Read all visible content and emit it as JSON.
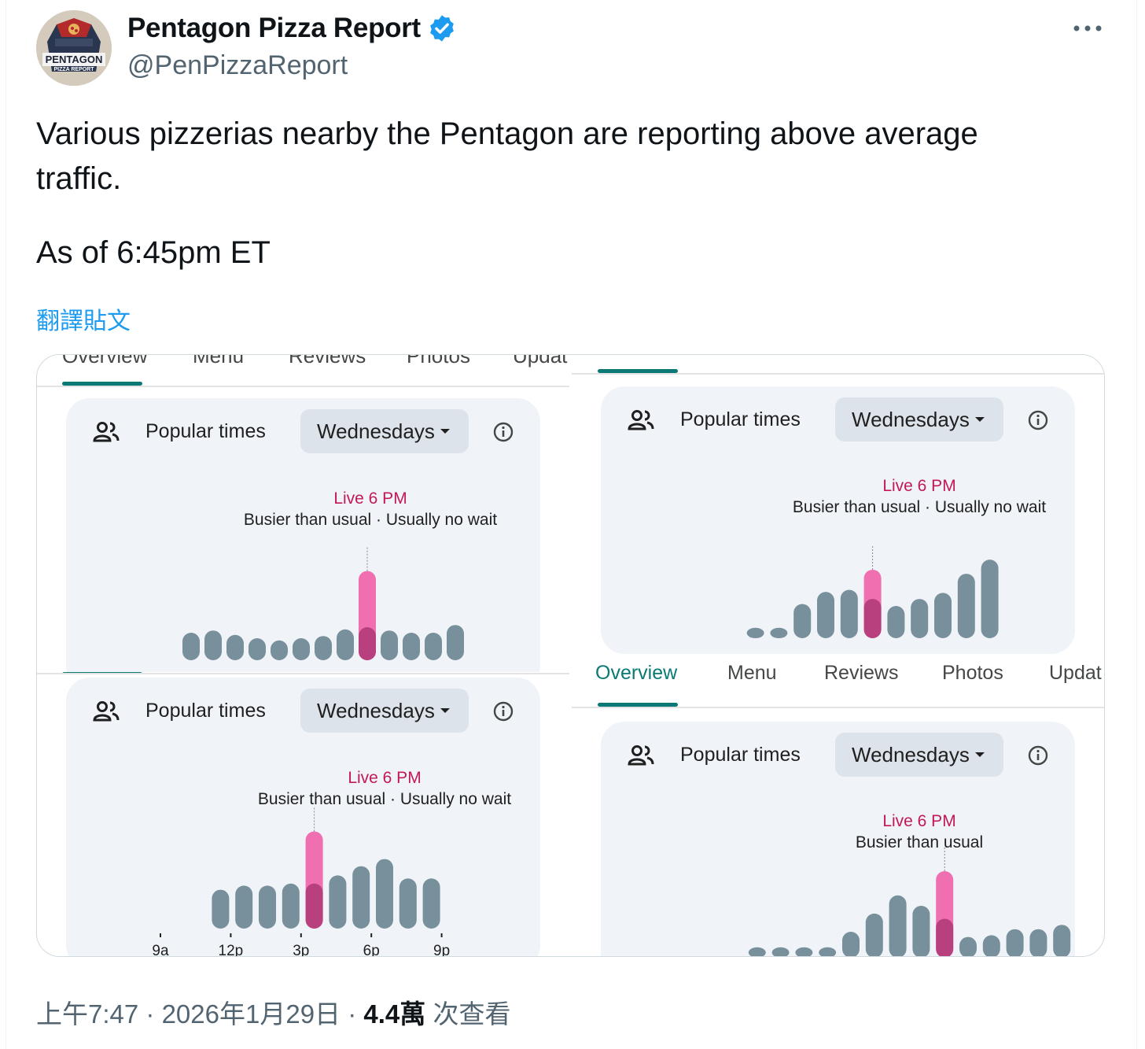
{
  "author": {
    "display_name": "Pentagon Pizza Report",
    "handle": "@PenPizzaReport",
    "avatar_text": "PENTAGON",
    "avatar_subtext": "PIZZA REPORT"
  },
  "tweet": {
    "line1": "Various pizzerias nearby the Pentagon are reporting above average",
    "line2": "traffic.",
    "line3": "As of 6:45pm ET",
    "translate_label": "翻譯貼文"
  },
  "tabs": {
    "overview": "Overview",
    "menu": "Menu",
    "reviews": "Reviews",
    "photos": "Photos",
    "updates": "Updat"
  },
  "cards": [
    {
      "title": "Popular times",
      "day": "Wednesdays",
      "live_label": "Live 6 PM",
      "status": "Busier than usual · Usually no wait",
      "usual": [
        0.25,
        0.27,
        0.23,
        0.2,
        0.18,
        0.2,
        0.22,
        0.28,
        0.3,
        0.27,
        0.25,
        0.25,
        0.32
      ],
      "live_index": 8,
      "live_value": 0.81,
      "tick_labels": []
    },
    {
      "title": "Popular times",
      "day": "Wednesdays",
      "live_label": "Live 6 PM",
      "status": "Busier than usual · Usually no wait",
      "usual": [
        0.0,
        0.0,
        0.06,
        0.1,
        0.34,
        0.46,
        0.48,
        0.39,
        0.32,
        0.39,
        0.45,
        0.64,
        0.78
      ],
      "live_index": 7,
      "live_value": 0.68,
      "tick_labels": []
    },
    {
      "title": "Popular times",
      "day": "Wednesdays",
      "live_label": "Live 6 PM",
      "status": "Busier than usual · Usually no wait",
      "usual": [
        0.0,
        0.0,
        0.0,
        0.38,
        0.42,
        0.42,
        0.44,
        0.44,
        0.52,
        0.61,
        0.68,
        0.49,
        0.49
      ],
      "live_index": 7,
      "live_value": 0.95,
      "tick_labels": [
        "9a",
        "12p",
        "3p",
        "6p",
        "9p"
      ]
    },
    {
      "title": "Popular times",
      "day": "Wednesdays",
      "live_label": "Live 6 PM",
      "status": "Busier than usual",
      "usual": [
        0.0,
        0.02,
        0.02,
        0.03,
        0.12,
        0.3,
        0.51,
        0.72,
        0.6,
        0.45,
        0.24,
        0.26,
        0.33,
        0.33,
        0.38
      ],
      "live_index": 9,
      "live_value": 1.0,
      "tick_labels": []
    }
  ],
  "footer": {
    "time": "上午7:47",
    "date": "2026年1月29日",
    "views": "4.4萬",
    "views_label": "次查看"
  },
  "colors": {
    "usual_bar": "#78909c",
    "live_bar": "#ef6fb0",
    "live_inner": "#b8407f",
    "accent": "#0b7a75",
    "verified": "#1d9bf0"
  }
}
